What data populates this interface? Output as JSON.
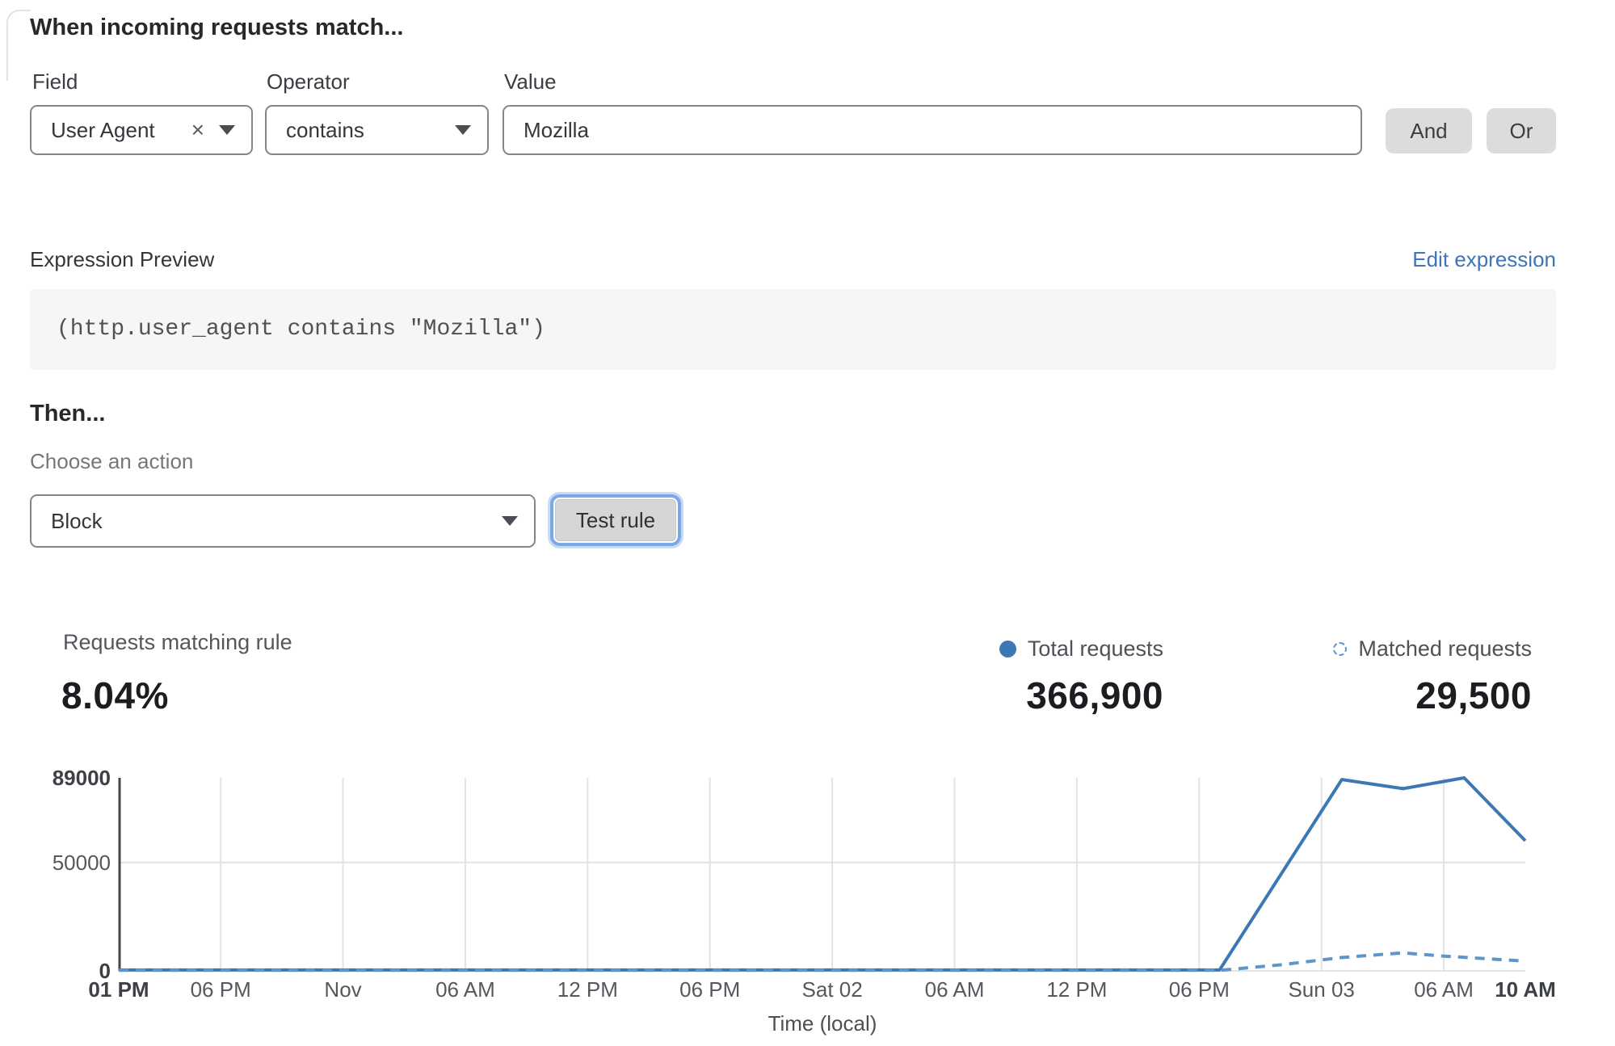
{
  "rule_builder": {
    "heading": "When incoming requests match...",
    "field": {
      "label": "Field",
      "value": "User Agent"
    },
    "operator": {
      "label": "Operator",
      "value": "contains"
    },
    "value_field": {
      "label": "Value",
      "value": "Mozilla"
    },
    "and_button": "And",
    "or_button": "Or"
  },
  "expression_preview": {
    "label": "Expression Preview",
    "edit_link": "Edit expression",
    "code": "(http.user_agent contains \"Mozilla\")"
  },
  "action_section": {
    "heading": "Then...",
    "choose_label": "Choose an action",
    "selected_action": "Block",
    "test_button": "Test rule"
  },
  "stats": {
    "matching": {
      "label": "Requests matching rule",
      "value": "8.04%"
    },
    "total": {
      "label": "Total requests",
      "value": "366,900"
    },
    "matched": {
      "label": "Matched requests",
      "value": "29,500"
    }
  },
  "chart_data": {
    "type": "line",
    "xlabel": "Time (local)",
    "ylim": [
      0,
      89000
    ],
    "x_range_hours": [
      0,
      69
    ],
    "grid": true,
    "legend_position": "top-right",
    "y_ticks": [
      {
        "value": 89000,
        "label": "89000",
        "bold": true,
        "gridline": false
      },
      {
        "value": 50000,
        "label": "50000",
        "bold": false,
        "gridline": true
      },
      {
        "value": 0,
        "label": "0",
        "bold": true,
        "gridline": true
      }
    ],
    "x_ticks": [
      {
        "hour": 0,
        "label": "01 PM",
        "bold": true,
        "gridline": false
      },
      {
        "hour": 5,
        "label": "06 PM",
        "bold": false,
        "gridline": true
      },
      {
        "hour": 11,
        "label": "Nov",
        "bold": false,
        "gridline": true
      },
      {
        "hour": 17,
        "label": "06 AM",
        "bold": false,
        "gridline": true
      },
      {
        "hour": 23,
        "label": "12 PM",
        "bold": false,
        "gridline": true
      },
      {
        "hour": 29,
        "label": "06 PM",
        "bold": false,
        "gridline": true
      },
      {
        "hour": 35,
        "label": "Sat 02",
        "bold": false,
        "gridline": true
      },
      {
        "hour": 41,
        "label": "06 AM",
        "bold": false,
        "gridline": true
      },
      {
        "hour": 47,
        "label": "12 PM",
        "bold": false,
        "gridline": true
      },
      {
        "hour": 53,
        "label": "06 PM",
        "bold": false,
        "gridline": true
      },
      {
        "hour": 59,
        "label": "Sun 03",
        "bold": false,
        "gridline": true
      },
      {
        "hour": 65,
        "label": "06 AM",
        "bold": false,
        "gridline": true
      },
      {
        "hour": 69,
        "label": "10 AM",
        "bold": true,
        "gridline": false
      }
    ],
    "series": [
      {
        "name": "Total requests",
        "style": "solid",
        "color": "#3c78b4",
        "points": [
          [
            0,
            400
          ],
          [
            54,
            400
          ],
          [
            60,
            88200
          ],
          [
            63,
            84000
          ],
          [
            66,
            89000
          ],
          [
            69,
            60000
          ]
        ]
      },
      {
        "name": "Matched requests",
        "style": "dashed",
        "color": "#6095c9",
        "points": [
          [
            0,
            250
          ],
          [
            54,
            250
          ],
          [
            57,
            2800
          ],
          [
            60,
            6200
          ],
          [
            63,
            8300
          ],
          [
            65,
            6800
          ],
          [
            69,
            4500
          ]
        ]
      }
    ]
  },
  "colors": {
    "link_blue": "#3e74b8",
    "focus_ring": "#7aa7e5",
    "total_series": "#3c78b4",
    "matched_series": "#6095c9",
    "gridline": "#e3e3e5",
    "axis": "#43464a"
  }
}
